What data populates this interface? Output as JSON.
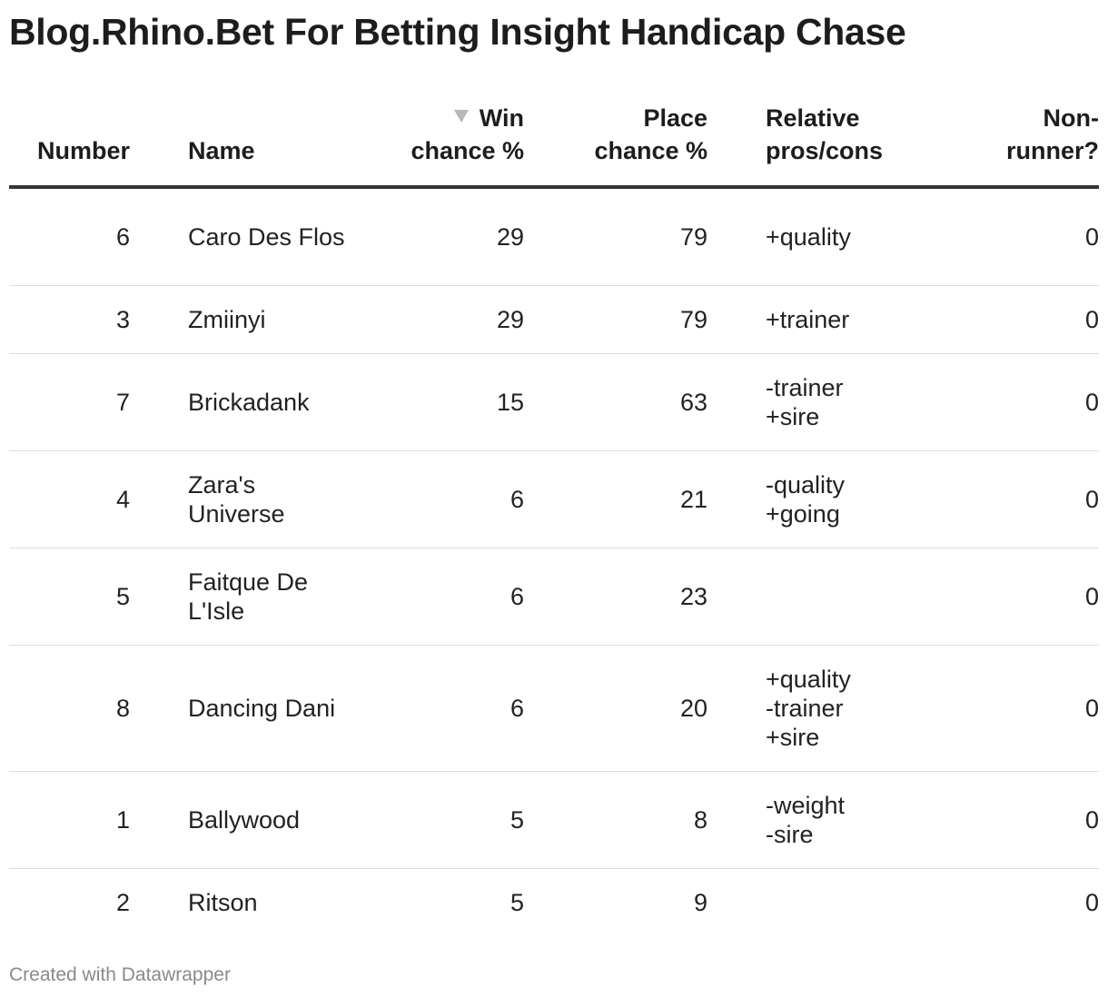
{
  "title": "Blog.Rhino.Bet For Betting Insight Handicap Chase",
  "headers": {
    "number": "Number",
    "name": "Name",
    "win_line1": "Win",
    "win_line2": "chance %",
    "place_line1": "Place",
    "place_line2": "chance %",
    "pros_line1": "Relative",
    "pros_line2": "pros/cons",
    "nr_line1": "Non-",
    "nr_line2": "runner?"
  },
  "sort_indicator": "triangle-down-icon",
  "chart_data": {
    "type": "table",
    "title": "Blog.Rhino.Bet For Betting Insight Handicap Chase",
    "columns": [
      "Number",
      "Name",
      "Win chance %",
      "Place chance %",
      "Relative pros/cons",
      "Non-runner?"
    ],
    "sorted_by": "Win chance %",
    "rows": [
      {
        "number": "6",
        "name": "Caro Des Flos",
        "win": "29",
        "place": "79",
        "pros": "+quality",
        "nr": "0"
      },
      {
        "number": "3",
        "name": "Zmiinyi",
        "win": "29",
        "place": "79",
        "pros": "+trainer",
        "nr": "0"
      },
      {
        "number": "7",
        "name": "Brickadank",
        "win": "15",
        "place": "63",
        "pros": "-trainer\n+sire",
        "nr": "0"
      },
      {
        "number": "4",
        "name": "Zara's Universe",
        "win": "6",
        "place": "21",
        "pros": "-quality\n+going",
        "nr": "0"
      },
      {
        "number": "5",
        "name": "Faitque De L'Isle",
        "win": "6",
        "place": "23",
        "pros": "",
        "nr": "0"
      },
      {
        "number": "8",
        "name": "Dancing Dani",
        "win": "6",
        "place": "20",
        "pros": "+quality\n-trainer\n+sire",
        "nr": "0"
      },
      {
        "number": "1",
        "name": "Ballywood",
        "win": "5",
        "place": "8",
        "pros": "-weight\n-sire",
        "nr": "0"
      },
      {
        "number": "2",
        "name": "Ritson",
        "win": "5",
        "place": "9",
        "pros": "",
        "nr": "0"
      }
    ]
  },
  "footer": "Created with Datawrapper"
}
